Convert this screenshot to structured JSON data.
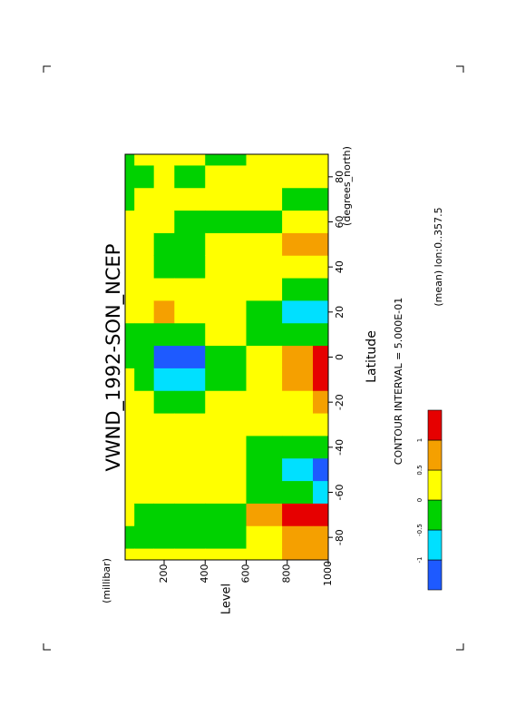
{
  "chart_data": {
    "type": "contour",
    "title": "VWND_1992-SON_NCEP",
    "x_label": "Latitude",
    "x_unit": "(degrees_north)",
    "y_label": "Level",
    "y_unit": "(millibar)",
    "x": [
      -90,
      -80,
      -70,
      -60,
      -50,
      -40,
      -30,
      -20,
      -10,
      0,
      10,
      20,
      30,
      40,
      50,
      60,
      70,
      80,
      90
    ],
    "y": [
      10,
      100,
      200,
      300,
      500,
      700,
      850,
      1000
    ],
    "z": [
      [
        0.1,
        -0.3,
        0.1,
        0.2,
        0.2,
        0.2,
        0.1,
        0.1,
        0,
        -0.2,
        -0.1,
        0.1,
        0.1,
        0.1,
        0.1,
        0.1,
        -0.1,
        -0.1,
        -0.2
      ],
      [
        0.1,
        -0.3,
        -0.2,
        0.3,
        0.3,
        0.3,
        0.2,
        0.1,
        -0.3,
        -0.4,
        -0.2,
        0.3,
        0.2,
        0.1,
        0.1,
        0.1,
        0.1,
        -0.1,
        0.1
      ],
      [
        0.2,
        -0.3,
        -0.3,
        0.3,
        0.3,
        0.3,
        0.2,
        -0.2,
        -0.7,
        -1.2,
        -0.3,
        0.7,
        0.2,
        -0.4,
        -0.2,
        0.1,
        0.2,
        0.1,
        0.1
      ],
      [
        0.2,
        -0.3,
        -0.3,
        0.3,
        0.3,
        0.2,
        0.2,
        -0.2,
        -0.6,
        -1.1,
        -0.3,
        0.4,
        0.2,
        -0.3,
        -0.2,
        -0.1,
        0.2,
        -0.1,
        0.1
      ],
      [
        0.1,
        -0.2,
        -0.2,
        0.2,
        0.2,
        0.2,
        0.2,
        0.1,
        -0.2,
        -0.2,
        0.1,
        0.2,
        0.2,
        0.1,
        0.1,
        -0.2,
        0.1,
        0.1,
        -0.2
      ],
      [
        0.4,
        0.3,
        0.8,
        -0.1,
        -0.2,
        -0.1,
        0.1,
        0.2,
        0.4,
        0.4,
        -0.1,
        -0.2,
        0.1,
        0.2,
        0.1,
        -0.2,
        0.1,
        0.1,
        0.2
      ],
      [
        0.6,
        0.7,
        1.3,
        -0.3,
        -0.7,
        -0.3,
        0.1,
        0.4,
        0.8,
        0.7,
        -0.2,
        -0.6,
        -0.2,
        0.1,
        0.6,
        0.2,
        -0.1,
        0.1,
        0.2
      ],
      [
        0.7,
        0.6,
        1.6,
        -0.6,
        -1.1,
        -0.4,
        0.1,
        0.6,
        1.2,
        1.0,
        -0.2,
        -1.0,
        -0.3,
        0.2,
        0.7,
        0.3,
        -0.1,
        0.1,
        0.3
      ]
    ],
    "xlim": [
      -90,
      90
    ],
    "xticks": [
      -80,
      -60,
      -40,
      -20,
      0,
      20,
      40,
      60,
      80
    ],
    "ylim": [
      10,
      1000
    ],
    "yticks": [
      200,
      400,
      600,
      800,
      1000
    ],
    "levels": [
      -1,
      -0.5,
      0,
      0.5,
      1
    ],
    "colors": [
      "#1e5aff",
      "#00e0ff",
      "#00d200",
      "#ffff00",
      "#f5a000",
      "#e60000"
    ],
    "annotations": [
      "CONTOUR INTERVAL = 5.000E-01",
      "(mean) lon:0..357.5"
    ]
  }
}
